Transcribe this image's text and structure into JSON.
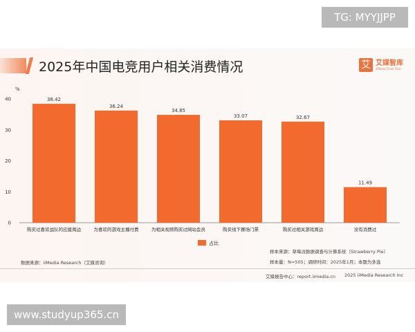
{
  "watermark_top": "TG: MYYJJPP",
  "watermark_bottom": "www.studyup365.cn",
  "header": {
    "title": "2025年中国电竞用户相关消费情况",
    "logo_mark": "艾",
    "logo_name": "艾媒智库",
    "logo_sub": "iiMedia Think Tank"
  },
  "chart_data": {
    "type": "bar",
    "title": "2025年中国电竞用户相关消费情况",
    "ylabel": "%",
    "ylim": [
      0,
      40
    ],
    "yticks": [
      0,
      10,
      20,
      30,
      40
    ],
    "categories": [
      "购买过喜欢战队的应援周边",
      "为喜欢的游戏主播付费",
      "为相关视频购买过网站会员",
      "购买线下赛场门票",
      "购买过相关游戏周边",
      "没有消费过"
    ],
    "series": [
      {
        "name": "占比",
        "values": [
          38.42,
          36.24,
          34.85,
          33.07,
          32.67,
          11.49
        ],
        "color": "#f26a2e"
      }
    ],
    "legend_position": "bottom-center",
    "grid": false
  },
  "notes": {
    "data_source": "数据来源：iiMedia Research（艾媒咨询）",
    "sample_source": "样本来源：草莓派数据调查与计算系统（Strawberry Pie）",
    "sample_size": "样本量：N=505；调研时间：2025年1月；本题为多选",
    "footer_left": "艾媒报告中心：report.iimedia.cn",
    "footer_right": "2025 iiMedia Research Inc"
  }
}
